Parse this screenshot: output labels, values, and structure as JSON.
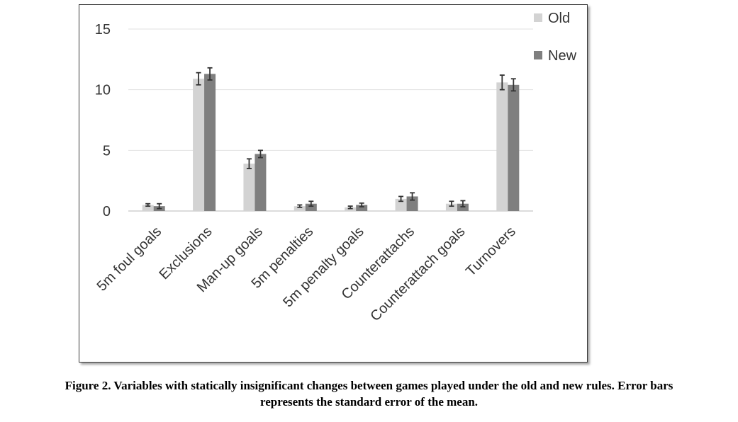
{
  "chart_data": {
    "type": "bar",
    "categories": [
      "5m foul goals",
      "Exclusions",
      "Man-up goals",
      "5m penalties",
      "5m penalty goals",
      "Counterattachs",
      "Counterattach goals",
      "Turnovers"
    ],
    "series": [
      {
        "name": "Old",
        "color": "#d3d3d3",
        "values": [
          0.5,
          10.9,
          3.9,
          0.4,
          0.3,
          1.0,
          0.6,
          10.6
        ],
        "errors": [
          0.1,
          0.5,
          0.4,
          0.1,
          0.1,
          0.2,
          0.2,
          0.6
        ]
      },
      {
        "name": "New",
        "color": "#7f7f7f",
        "values": [
          0.4,
          11.3,
          4.7,
          0.6,
          0.5,
          1.2,
          0.6,
          10.4
        ],
        "errors": [
          0.2,
          0.5,
          0.3,
          0.2,
          0.15,
          0.3,
          0.25,
          0.5
        ]
      }
    ],
    "ylim": [
      0,
      15
    ],
    "yticks": [
      "0",
      "5",
      "10",
      "15"
    ],
    "grid": true,
    "legend_position": "top-right",
    "xlabel": "",
    "ylabel": ""
  },
  "caption": {
    "line1": "Figure 2. Variables with statically insignificant changes between games played under the old and new rules. Error bars",
    "line2": "represents the standard error of the mean."
  }
}
